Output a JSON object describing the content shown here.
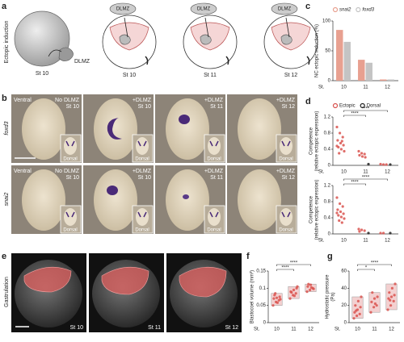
{
  "panels": {
    "a": {
      "label": "a",
      "side_label": "Ectopic induction",
      "graft_label": "DLMZ",
      "diagrams": [
        {
          "stage": "St 10"
        },
        {
          "top": "DLMZ",
          "stage": "St 10"
        },
        {
          "top": "DLMZ",
          "stage": "St 11"
        },
        {
          "top": "DLMZ",
          "stage": "St 12"
        }
      ]
    },
    "b": {
      "label": "b",
      "view": "Ventral",
      "rows": [
        {
          "gene": "foxd3",
          "images": [
            {
              "line1": "No DLMZ",
              "line2": "St 10",
              "inset": "Dorsal"
            },
            {
              "line1": "+DLMZ",
              "line2": "St 10",
              "inset": "Dorsal"
            },
            {
              "line1": "+DLMZ",
              "line2": "St 11",
              "inset": "Dorsal"
            },
            {
              "line1": "+DLMZ",
              "line2": "St 12",
              "inset": "Dorsal"
            }
          ]
        },
        {
          "gene": "snai2",
          "images": [
            {
              "line1": "No DLMZ",
              "line2": "St 10",
              "inset": "Dorsal"
            },
            {
              "line1": "+DLMZ",
              "line2": "St 10",
              "inset": "Dorsal"
            },
            {
              "line1": "+DLMZ",
              "line2": "St 11",
              "inset": "Dorsal"
            },
            {
              "line1": "+DLMZ",
              "line2": "St 12",
              "inset": "Dorsal"
            }
          ]
        }
      ]
    },
    "e": {
      "label": "e",
      "side_label": "Gastrulation",
      "stages": [
        "St 10",
        "St 11",
        "St 12"
      ]
    }
  },
  "chart_data": [
    {
      "type": "bar",
      "label": "c",
      "ylabel": "NC ectopic induction (%)",
      "xlabel": "St.",
      "categories": [
        "10",
        "11",
        "12"
      ],
      "ylim": [
        0,
        100
      ],
      "yticks": [
        0,
        50,
        100
      ],
      "series": [
        {
          "name": "snai2",
          "color": "#e8a090",
          "values": [
            85,
            35,
            2
          ]
        },
        {
          "name": "foxd3",
          "color": "#c4c4c4",
          "values": [
            65,
            30,
            2
          ]
        }
      ]
    },
    {
      "type": "strip",
      "label": "d",
      "ylabel": "Competence",
      "ylabel2": "(relative ectopic expression)",
      "xlabel": "St.",
      "categories": [
        "10",
        "11",
        "12"
      ],
      "ylim": [
        0,
        1.2
      ],
      "yticks": [
        0,
        0.4,
        0.8,
        1.2
      ],
      "significance": [
        "****",
        "****"
      ],
      "series": [
        {
          "name": "Ectopic",
          "color": "#d9534f",
          "values": [
            [
              0.95,
              0.8,
              0.7,
              0.62,
              0.55,
              0.5,
              0.45,
              0.4,
              0.35,
              0.3,
              0.6,
              0.48
            ],
            [
              0.35,
              0.3,
              0.28,
              0.25,
              0.22,
              0.2
            ],
            [
              0.03,
              0.02,
              0.02
            ]
          ]
        },
        {
          "name": "Dorsal",
          "color": "#222222",
          "values": [
            [],
            [
              0.03
            ],
            [
              0.02
            ]
          ]
        }
      ]
    },
    {
      "type": "strip",
      "ylabel": "Competence",
      "ylabel2": "(relative ectopic expression)",
      "xlabel": "St.",
      "categories": [
        "10",
        "11",
        "12"
      ],
      "ylim": [
        0,
        1.2
      ],
      "yticks": [
        0,
        0.4,
        0.8,
        1.2
      ],
      "significance": [
        "****",
        "****"
      ],
      "series": [
        {
          "color": "#d9534f",
          "values": [
            [
              0.9,
              0.75,
              0.68,
              0.6,
              0.55,
              0.5,
              0.46,
              0.42,
              0.38,
              0.33,
              0.28,
              0.52
            ],
            [
              0.12,
              0.1,
              0.08,
              0.06
            ],
            [
              0.02,
              0.02
            ]
          ]
        },
        {
          "color": "#222222",
          "values": [
            [],
            [
              0.02
            ],
            [
              0.02
            ]
          ]
        }
      ]
    },
    {
      "type": "strip",
      "label": "f",
      "ylabel": "Blastocoel volume (mm³)",
      "xlabel": "St.",
      "categories": [
        "10",
        "11",
        "12"
      ],
      "ylim": [
        0,
        0.15
      ],
      "yticks": [
        0,
        0.05,
        0.1,
        0.15
      ],
      "significance": [
        "****",
        "****"
      ],
      "box": true,
      "series": [
        {
          "color": "#d9534f",
          "values": [
            [
              0.05,
              0.06,
              0.065,
              0.07,
              0.072,
              0.075,
              0.08,
              0.058,
              0.068,
              0.085
            ],
            [
              0.07,
              0.08,
              0.085,
              0.09,
              0.095,
              0.1,
              0.088,
              0.078,
              0.105
            ],
            [
              0.09,
              0.095,
              0.1,
              0.105,
              0.11,
              0.098,
              0.112,
              0.102
            ]
          ]
        }
      ]
    },
    {
      "type": "strip",
      "label": "g",
      "ylabel": "Hydrostatic pressure",
      "ylabel2": "(Pa)",
      "xlabel": "St.",
      "categories": [
        "10",
        "11",
        "12"
      ],
      "ylim": [
        0,
        60
      ],
      "yticks": [
        0,
        20,
        40,
        60
      ],
      "significance": [
        "*",
        "****"
      ],
      "box": true,
      "series": [
        {
          "color": "#d9534f",
          "values": [
            [
              5,
              8,
              10,
              12,
              15,
              18,
              20,
              25,
              30,
              14
            ],
            [
              12,
              18,
              20,
              24,
              28,
              30,
              35,
              22
            ],
            [
              15,
              20,
              25,
              28,
              30,
              32,
              35,
              40,
              45,
              26
            ]
          ]
        }
      ]
    }
  ]
}
